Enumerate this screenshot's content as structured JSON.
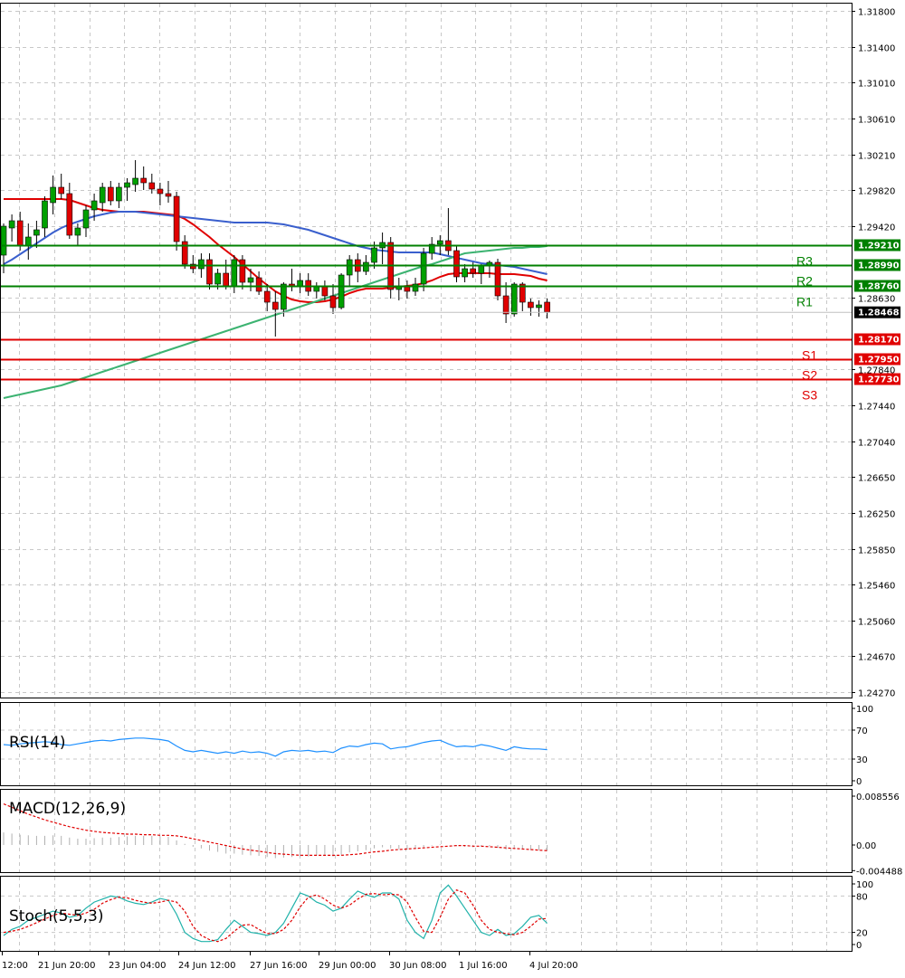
{
  "chart_data": {
    "type": "candlestick",
    "price_axis": {
      "ticks": [
        "1.31800",
        "1.31400",
        "1.31010",
        "1.30610",
        "1.30210",
        "1.29820",
        "1.29420",
        "1.28630",
        "1.27840",
        "1.27440",
        "1.27040",
        "1.26650",
        "1.26250",
        "1.25850",
        "1.25460",
        "1.25060",
        "1.24670",
        "1.24270"
      ],
      "range": [
        1.2421,
        1.3188
      ],
      "current_price": "1.28468"
    },
    "time_axis": {
      "labels": [
        "12:00",
        "21 Jun 20:00",
        "23 Jun 04:00",
        "24 Jun 12:00",
        "27 Jun 16:00",
        "29 Jun 00:00",
        "30 Jun 08:00",
        "1 Jul 16:00",
        "4 Jul 20:00"
      ]
    },
    "resistance": [
      {
        "name": "R1",
        "price": "1.28760",
        "color": "#008000"
      },
      {
        "name": "R2",
        "price": "1.28990",
        "color": "#008000"
      },
      {
        "name": "R3",
        "price": "1.29210",
        "color": "#008000"
      }
    ],
    "support": [
      {
        "name": "S1",
        "price": "1.28170",
        "color": "#e00000"
      },
      {
        "name": "S2",
        "price": "1.27950",
        "color": "#e00000"
      },
      {
        "name": "S3",
        "price": "1.27730",
        "color": "#e00000"
      }
    ],
    "candles": [
      [
        1.291,
        1.2945,
        1.289,
        1.2942
      ],
      [
        1.294,
        1.2955,
        1.2925,
        1.2948
      ],
      [
        1.2948,
        1.2958,
        1.2915,
        1.292
      ],
      [
        1.292,
        1.2945,
        1.2905,
        1.293
      ],
      [
        1.2932,
        1.2948,
        1.2918,
        1.2938
      ],
      [
        1.294,
        1.2975,
        1.293,
        1.297
      ],
      [
        1.2968,
        1.2998,
        1.2955,
        1.2985
      ],
      [
        1.2985,
        1.3,
        1.2972,
        1.2978
      ],
      [
        1.2978,
        1.299,
        1.2928,
        1.2932
      ],
      [
        1.2932,
        1.2945,
        1.292,
        1.294
      ],
      [
        1.294,
        1.2965,
        1.293,
        1.296
      ],
      [
        1.296,
        1.2978,
        1.2948,
        1.297
      ],
      [
        1.2968,
        1.299,
        1.2958,
        1.2985
      ],
      [
        1.2985,
        1.2992,
        1.2965,
        1.297
      ],
      [
        1.297,
        1.299,
        1.2962,
        1.2985
      ],
      [
        1.2985,
        1.2995,
        1.297,
        1.299
      ],
      [
        1.2988,
        1.3015,
        1.298,
        1.2995
      ],
      [
        1.2995,
        1.3008,
        1.2982,
        1.299
      ],
      [
        1.299,
        1.3,
        1.2978,
        1.2983
      ],
      [
        1.2983,
        1.299,
        1.2965,
        1.2978
      ],
      [
        1.2978,
        1.2992,
        1.2968,
        1.2975
      ],
      [
        1.2975,
        1.298,
        1.2915,
        1.2925
      ],
      [
        1.2925,
        1.2932,
        1.2895,
        1.29
      ],
      [
        1.29,
        1.291,
        1.289,
        1.2895
      ],
      [
        1.2895,
        1.2912,
        1.2885,
        1.2905
      ],
      [
        1.2905,
        1.2912,
        1.2872,
        1.2878
      ],
      [
        1.2878,
        1.2895,
        1.2872,
        1.289
      ],
      [
        1.289,
        1.2905,
        1.2872,
        1.2875
      ],
      [
        1.2875,
        1.291,
        1.2868,
        1.2905
      ],
      [
        1.2905,
        1.291,
        1.2872,
        1.288
      ],
      [
        1.288,
        1.2895,
        1.287,
        1.2885
      ],
      [
        1.2885,
        1.2892,
        1.2866,
        1.287
      ],
      [
        1.287,
        1.2878,
        1.2848,
        1.2858
      ],
      [
        1.2858,
        1.287,
        1.282,
        1.285
      ],
      [
        1.285,
        1.288,
        1.2842,
        1.2878
      ],
      [
        1.2878,
        1.2895,
        1.287,
        1.2875
      ],
      [
        1.2875,
        1.289,
        1.2868,
        1.2882
      ],
      [
        1.2882,
        1.289,
        1.2865,
        1.287
      ],
      [
        1.287,
        1.288,
        1.2862,
        1.2875
      ],
      [
        1.2875,
        1.2882,
        1.286,
        1.2865
      ],
      [
        1.2865,
        1.2878,
        1.2845,
        1.2852
      ],
      [
        1.2852,
        1.289,
        1.285,
        1.2888
      ],
      [
        1.2888,
        1.291,
        1.2876,
        1.2905
      ],
      [
        1.2905,
        1.2912,
        1.288,
        1.2892
      ],
      [
        1.2892,
        1.291,
        1.2888,
        1.2902
      ],
      [
        1.2902,
        1.2925,
        1.2895,
        1.2918
      ],
      [
        1.2918,
        1.2935,
        1.29,
        1.2924
      ],
      [
        1.2924,
        1.293,
        1.2862,
        1.2872
      ],
      [
        1.2872,
        1.2885,
        1.286,
        1.2875
      ],
      [
        1.2875,
        1.2882,
        1.2862,
        1.287
      ],
      [
        1.287,
        1.2885,
        1.2865,
        1.2878
      ],
      [
        1.2878,
        1.2918,
        1.287,
        1.2912
      ],
      [
        1.2912,
        1.293,
        1.2905,
        1.2922
      ],
      [
        1.2922,
        1.2932,
        1.291,
        1.2926
      ],
      [
        1.2926,
        1.2962,
        1.291,
        1.2915
      ],
      [
        1.2915,
        1.292,
        1.288,
        1.2886
      ],
      [
        1.2886,
        1.29,
        1.288,
        1.2895
      ],
      [
        1.2895,
        1.2902,
        1.2885,
        1.289
      ],
      [
        1.289,
        1.29,
        1.2878,
        1.2898
      ],
      [
        1.2898,
        1.2904,
        1.2885,
        1.2902
      ],
      [
        1.2902,
        1.2906,
        1.286,
        1.2865
      ],
      [
        1.2865,
        1.288,
        1.2835,
        1.2845
      ],
      [
        1.2845,
        1.288,
        1.2842,
        1.2878
      ],
      [
        1.2878,
        1.288,
        1.2848,
        1.2858
      ],
      [
        1.2858,
        1.2862,
        1.2843,
        1.2852
      ],
      [
        1.2852,
        1.286,
        1.2842,
        1.2855
      ],
      [
        1.2858,
        1.2862,
        1.284,
        1.2847
      ]
    ],
    "moving_averages": [
      {
        "color": "#e00000",
        "values": [
          1.2972,
          1.2972,
          1.2972,
          1.2972,
          1.2972,
          1.2972,
          1.2972,
          1.2972,
          1.2971,
          1.2968,
          1.2965,
          1.2962,
          1.296,
          1.2959,
          1.2958,
          1.2958,
          1.2958,
          1.2958,
          1.2957,
          1.2956,
          1.2955,
          1.2954,
          1.295,
          1.2944,
          1.2937,
          1.293,
          1.2922,
          1.2915,
          1.2908,
          1.29,
          1.2892,
          1.2884,
          1.2877,
          1.287,
          1.2865,
          1.2861,
          1.2859,
          1.2858,
          1.2858,
          1.2859,
          1.2861,
          1.2864,
          1.2868,
          1.2871,
          1.2873,
          1.2873,
          1.2873,
          1.2874,
          1.2875,
          1.2876,
          1.2877,
          1.2879,
          1.2882,
          1.2886,
          1.2889,
          1.289,
          1.289,
          1.289,
          1.289,
          1.289,
          1.2889,
          1.2889,
          1.2889,
          1.2888,
          1.2887,
          1.2884,
          1.2882
        ]
      },
      {
        "color": "#3a5fcd",
        "values": [
          1.29,
          1.2905,
          1.2911,
          1.2917,
          1.2923,
          1.2929,
          1.2935,
          1.294,
          1.2944,
          1.2947,
          1.295,
          1.2953,
          1.2955,
          1.2957,
          1.2958,
          1.2958,
          1.2958,
          1.2957,
          1.2956,
          1.2955,
          1.2954,
          1.2953,
          1.2952,
          1.2951,
          1.295,
          1.2949,
          1.2948,
          1.2947,
          1.2946,
          1.2946,
          1.2946,
          1.2946,
          1.2946,
          1.2945,
          1.2944,
          1.2942,
          1.294,
          1.2938,
          1.2935,
          1.2932,
          1.2929,
          1.2926,
          1.2923,
          1.292,
          1.2918,
          1.2916,
          1.2915,
          1.2914,
          1.2913,
          1.2913,
          1.2913,
          1.2913,
          1.2913,
          1.2911,
          1.2909,
          1.2907,
          1.2905,
          1.2903,
          1.2901,
          1.29,
          1.2899,
          1.2898,
          1.2897,
          1.2895,
          1.2893,
          1.2891,
          1.2889
        ]
      },
      {
        "color": "#3cb371",
        "values": [
          1.2752,
          1.2754,
          1.2756,
          1.2758,
          1.276,
          1.2762,
          1.2764,
          1.2766,
          1.2769,
          1.2772,
          1.2775,
          1.2778,
          1.2781,
          1.2784,
          1.2787,
          1.279,
          1.2793,
          1.2796,
          1.2799,
          1.2802,
          1.2805,
          1.2808,
          1.2811,
          1.2814,
          1.2817,
          1.282,
          1.2823,
          1.2826,
          1.2829,
          1.2832,
          1.2835,
          1.2838,
          1.2841,
          1.2844,
          1.2847,
          1.285,
          1.2853,
          1.2856,
          1.2859,
          1.2862,
          1.2865,
          1.2868,
          1.2871,
          1.2874,
          1.2877,
          1.288,
          1.2883,
          1.2886,
          1.2889,
          1.2892,
          1.2895,
          1.2898,
          1.29,
          1.2903,
          1.2906,
          1.2909,
          1.2912,
          1.2913,
          1.2914,
          1.2915,
          1.2916,
          1.2917,
          1.2918,
          1.2918,
          1.2919,
          1.2919,
          1.292
        ]
      }
    ],
    "rsi": {
      "label": "RSI(14)",
      "ticks": [
        "100",
        "70",
        "30",
        "0"
      ],
      "values": [
        50,
        49,
        51,
        52,
        53,
        54,
        53,
        50,
        49,
        51,
        53,
        55,
        56,
        55,
        57,
        58,
        59,
        59,
        58,
        57,
        55,
        48,
        42,
        40,
        42,
        40,
        38,
        40,
        38,
        41,
        39,
        40,
        38,
        34,
        40,
        42,
        41,
        42,
        40,
        41,
        39,
        45,
        48,
        47,
        50,
        52,
        51,
        44,
        46,
        47,
        50,
        53,
        55,
        56,
        51,
        47,
        48,
        47,
        50,
        48,
        45,
        42,
        47,
        45,
        44,
        44,
        43
      ]
    },
    "macd": {
      "label": "MACD(12,26,9)",
      "ticks": [
        "0.008556",
        "0.00",
        "-0.004488"
      ],
      "histogram": [
        0.0022,
        0.002,
        0.0018,
        0.0017,
        0.0016,
        0.0016,
        0.0017,
        0.0016,
        0.0013,
        0.0011,
        0.0011,
        0.0012,
        0.0013,
        0.0013,
        0.0014,
        0.0015,
        0.0016,
        0.0016,
        0.0016,
        0.0015,
        0.0014,
        0.0008,
        0.0002,
        -0.0003,
        -0.0006,
        -0.001,
        -0.0012,
        -0.0015,
        -0.0015,
        -0.0017,
        -0.0018,
        -0.0019,
        -0.0021,
        -0.0023,
        -0.0022,
        -0.0021,
        -0.002,
        -0.002,
        -0.0019,
        -0.0019,
        -0.002,
        -0.0017,
        -0.0013,
        -0.0011,
        -0.0009,
        -0.0006,
        -0.0004,
        -0.0006,
        -0.0007,
        -0.0008,
        -0.0007,
        -0.0004,
        -0.0001,
        0.0001,
        0.0,
        -0.0002,
        -0.0003,
        -0.0004,
        -0.0003,
        -0.0002,
        -0.0005,
        -0.0008,
        -0.0007,
        -0.0008,
        -0.0009,
        -0.0009,
        -0.001
      ],
      "signal": [
        0.0072,
        0.0066,
        0.006,
        0.0054,
        0.0049,
        0.0044,
        0.004,
        0.0036,
        0.0032,
        0.0029,
        0.0026,
        0.0024,
        0.0022,
        0.0021,
        0.002,
        0.0019,
        0.0019,
        0.0018,
        0.0018,
        0.0017,
        0.0017,
        0.0016,
        0.0014,
        0.0011,
        0.0008,
        0.0005,
        0.0002,
        -0.0001,
        -0.0004,
        -0.0007,
        -0.0009,
        -0.0011,
        -0.0013,
        -0.0015,
        -0.0016,
        -0.0017,
        -0.0018,
        -0.0018,
        -0.0018,
        -0.0018,
        -0.0018,
        -0.0018,
        -0.0017,
        -0.0016,
        -0.0014,
        -0.0012,
        -0.0011,
        -0.0009,
        -0.0008,
        -0.0007,
        -0.0006,
        -0.0005,
        -0.0004,
        -0.0003,
        -0.0002,
        -0.0001,
        -0.0001,
        -0.0002,
        -0.0002,
        -0.0003,
        -0.0004,
        -0.0005,
        -0.0006,
        -0.0007,
        -0.0008,
        -0.0009,
        -0.001
      ]
    },
    "stoch": {
      "label": "Stoch(5,5,3)",
      "ticks": [
        "100",
        "80",
        "20",
        "0"
      ],
      "main": [
        15,
        25,
        30,
        40,
        45,
        50,
        55,
        52,
        45,
        48,
        60,
        70,
        75,
        80,
        78,
        72,
        68,
        66,
        70,
        76,
        73,
        50,
        20,
        10,
        5,
        5,
        8,
        25,
        40,
        30,
        20,
        18,
        15,
        20,
        35,
        60,
        85,
        80,
        70,
        65,
        55,
        60,
        75,
        88,
        82,
        78,
        85,
        85,
        75,
        40,
        20,
        10,
        40,
        85,
        98,
        80,
        60,
        40,
        20,
        15,
        25,
        15,
        18,
        30,
        45,
        48,
        35
      ],
      "signal": [
        20,
        22,
        25,
        30,
        36,
        42,
        48,
        52,
        50,
        48,
        52,
        58,
        68,
        74,
        78,
        77,
        73,
        70,
        68,
        70,
        73,
        70,
        55,
        30,
        15,
        8,
        5,
        10,
        22,
        32,
        33,
        25,
        18,
        18,
        25,
        40,
        62,
        78,
        82,
        75,
        65,
        60,
        65,
        75,
        83,
        84,
        82,
        83,
        82,
        70,
        45,
        22,
        20,
        45,
        75,
        90,
        85,
        65,
        40,
        25,
        20,
        18,
        16,
        20,
        30,
        42,
        43
      ]
    }
  }
}
